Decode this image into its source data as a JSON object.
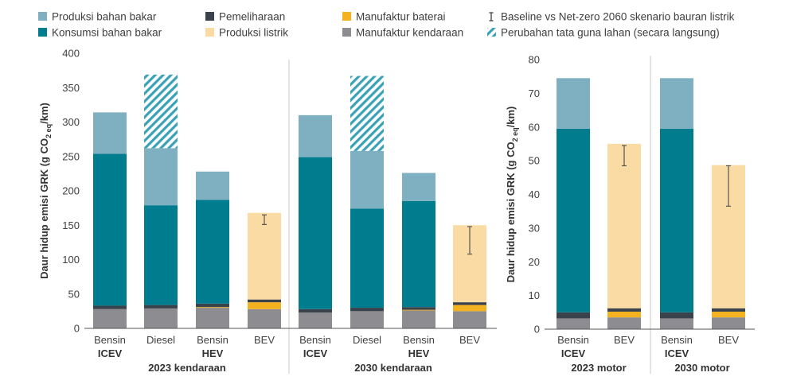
{
  "legend": [
    {
      "key": "fuel_production",
      "label": "Produksi bahan bakar",
      "color": "#7eb0c2"
    },
    {
      "key": "fuel_consumption",
      "label": "Konsumsi bahan bakar",
      "color": "#007c8f"
    },
    {
      "key": "maintenance",
      "label": "Pemeliharaan",
      "color": "#3a434b"
    },
    {
      "key": "electricity_production",
      "label": "Produksi listrik",
      "color": "#fbdba4"
    },
    {
      "key": "battery_manufacturing",
      "label": "Manufaktur baterai",
      "color": "#f4b221"
    },
    {
      "key": "vehicle_manufacturing",
      "label": "Manufaktur kendaraan",
      "color": "#8d8d91"
    },
    {
      "key": "error_bar",
      "label": "Baseline vs Net-zero 2060 skenario bauran listrik",
      "color": "#555555"
    },
    {
      "key": "land_use_change",
      "label": "Perubahan tata guna lahan (secara langsung)",
      "color": "#3aa2b6"
    }
  ],
  "chart_data": [
    {
      "type": "bar",
      "stacked": true,
      "ylabel": "Daur hidup emisi GRK (g CO2 eq/km)",
      "ylabel_main": "Daur hidup emisi GRK (g CO",
      "ylabel_sub": "2 eq",
      "ylabel_end": "/km)",
      "ylim": [
        0,
        400
      ],
      "yticks": [
        0,
        50,
        100,
        150,
        200,
        250,
        300,
        350,
        400
      ],
      "groups": [
        {
          "label": "2023 kendaraan",
          "bars": [
            {
              "label": "Bensin",
              "sublabel": "ICEV",
              "vehicle_manufacturing": 28,
              "battery_manufacturing": 0,
              "maintenance": 5,
              "fuel_consumption": 221,
              "electricity_production": 0,
              "fuel_production": 60,
              "land_use_change": 0
            },
            {
              "label": "Diesel",
              "sublabel": "",
              "vehicle_manufacturing": 29,
              "battery_manufacturing": 0,
              "maintenance": 5,
              "fuel_consumption": 145,
              "electricity_production": 0,
              "fuel_production": 83,
              "land_use_change": 107
            },
            {
              "label": "Bensin",
              "sublabel": "HEV",
              "vehicle_manufacturing": 30,
              "battery_manufacturing": 1,
              "maintenance": 5,
              "fuel_consumption": 151,
              "electricity_production": 0,
              "fuel_production": 41,
              "land_use_change": 0
            },
            {
              "label": "BEV",
              "sublabel": "",
              "vehicle_manufacturing": 28,
              "battery_manufacturing": 10,
              "maintenance": 4,
              "fuel_consumption": 0,
              "electricity_production": 126,
              "fuel_production": 0,
              "land_use_change": 0,
              "error": [
                151,
                165
              ]
            }
          ]
        },
        {
          "label": "2030 kendaraan",
          "bars": [
            {
              "label": "Bensin",
              "sublabel": "ICEV",
              "vehicle_manufacturing": 23,
              "battery_manufacturing": 0,
              "maintenance": 5,
              "fuel_consumption": 221,
              "electricity_production": 0,
              "fuel_production": 61,
              "land_use_change": 0
            },
            {
              "label": "Diesel",
              "sublabel": "",
              "vehicle_manufacturing": 25,
              "battery_manufacturing": 0,
              "maintenance": 5,
              "fuel_consumption": 144,
              "electricity_production": 0,
              "fuel_production": 84,
              "land_use_change": 109
            },
            {
              "label": "Bensin",
              "sublabel": "HEV",
              "vehicle_manufacturing": 26,
              "battery_manufacturing": 1,
              "maintenance": 4,
              "fuel_consumption": 154,
              "electricity_production": 0,
              "fuel_production": 41,
              "land_use_change": 0
            },
            {
              "label": "BEV",
              "sublabel": "",
              "vehicle_manufacturing": 25,
              "battery_manufacturing": 9,
              "maintenance": 4,
              "fuel_consumption": 0,
              "electricity_production": 112,
              "fuel_production": 0,
              "land_use_change": 0,
              "error": [
                108,
                148
              ]
            }
          ]
        }
      ]
    },
    {
      "type": "bar",
      "stacked": true,
      "ylabel": "Daur hidup emisi GRK (g CO2 eq/km)",
      "ylabel_main": "Daur hidup emisi GRK (g CO",
      "ylabel_sub": "2 eq",
      "ylabel_end": "/km)",
      "ylim": [
        0,
        80
      ],
      "yticks": [
        0,
        10,
        20,
        30,
        40,
        50,
        60,
        70,
        80
      ],
      "groups": [
        {
          "label": "2023 motor",
          "bars": [
            {
              "label": "Bensin",
              "sublabel": "ICEV",
              "vehicle_manufacturing": 3.2,
              "battery_manufacturing": 0,
              "maintenance": 1.8,
              "fuel_consumption": 54.5,
              "electricity_production": 0,
              "fuel_production": 15,
              "land_use_change": 0
            },
            {
              "label": "BEV",
              "sublabel": "",
              "vehicle_manufacturing": 3.5,
              "battery_manufacturing": 1.7,
              "maintenance": 1,
              "fuel_consumption": 0,
              "electricity_production": 48.8,
              "fuel_production": 0,
              "land_use_change": 0,
              "error": [
                48.5,
                54.5
              ]
            }
          ]
        },
        {
          "label": "2030 motor",
          "bars": [
            {
              "label": "Bensin",
              "sublabel": "ICEV",
              "vehicle_manufacturing": 3.2,
              "battery_manufacturing": 0,
              "maintenance": 1.8,
              "fuel_consumption": 54.5,
              "electricity_production": 0,
              "fuel_production": 15,
              "land_use_change": 0
            },
            {
              "label": "BEV",
              "sublabel": "",
              "vehicle_manufacturing": 3.5,
              "battery_manufacturing": 1.7,
              "maintenance": 1,
              "fuel_consumption": 0,
              "electricity_production": 42.5,
              "fuel_production": 0,
              "land_use_change": 0,
              "error": [
                36.5,
                48.5
              ]
            }
          ]
        }
      ]
    }
  ]
}
